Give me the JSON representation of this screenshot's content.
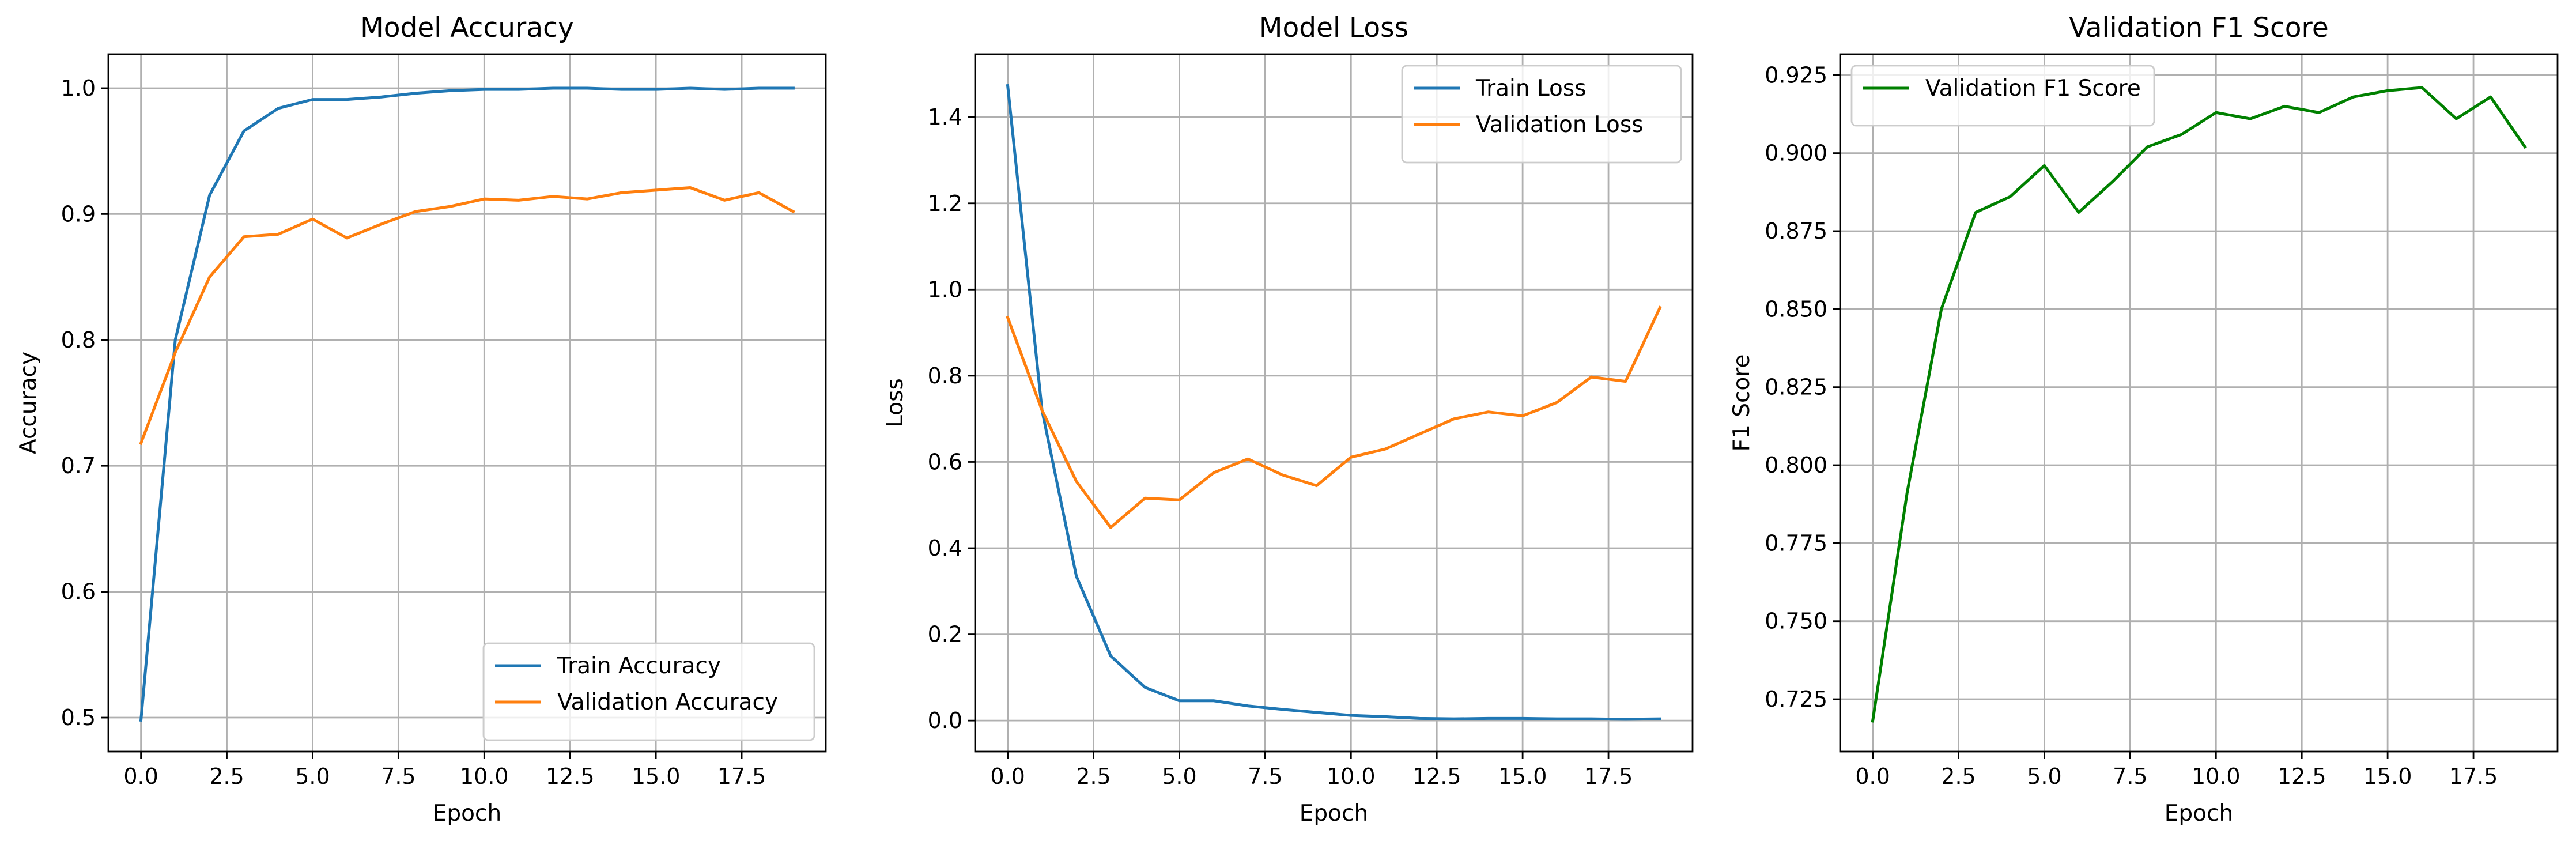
{
  "chart_data": [
    {
      "type": "line",
      "title": "Model Accuracy",
      "xlabel": "Epoch",
      "ylabel": "Accuracy",
      "x": [
        0,
        1,
        2,
        3,
        4,
        5,
        6,
        7,
        8,
        9,
        10,
        11,
        12,
        13,
        14,
        15,
        16,
        17,
        18,
        19
      ],
      "xlim": [
        -0.95,
        19.95
      ],
      "ylim": [
        0.473,
        1.027
      ],
      "xticks": [
        0.0,
        2.5,
        5.0,
        7.5,
        10.0,
        12.5,
        15.0,
        17.5
      ],
      "xtick_labels": [
        "0.0",
        "2.5",
        "5.0",
        "7.5",
        "10.0",
        "12.5",
        "15.0",
        "17.5"
      ],
      "yticks": [
        0.5,
        0.6,
        0.7,
        0.8,
        0.9,
        1.0
      ],
      "ytick_labels": [
        "0.5",
        "0.6",
        "0.7",
        "0.8",
        "0.9",
        "1.0"
      ],
      "grid": true,
      "legend_position": "lower-right",
      "series": [
        {
          "name": "Train Accuracy",
          "color": "#1f77b4",
          "values": [
            0.498,
            0.8,
            0.915,
            0.966,
            0.984,
            0.991,
            0.991,
            0.993,
            0.996,
            0.998,
            0.999,
            0.999,
            1.0,
            1.0,
            0.999,
            0.999,
            1.0,
            0.999,
            1.0,
            1.0
          ]
        },
        {
          "name": "Validation Accuracy",
          "color": "#ff7f0e",
          "values": [
            0.718,
            0.79,
            0.85,
            0.882,
            0.884,
            0.896,
            0.881,
            0.892,
            0.902,
            0.906,
            0.912,
            0.911,
            0.914,
            0.912,
            0.917,
            0.919,
            0.921,
            0.911,
            0.917,
            0.902
          ]
        }
      ]
    },
    {
      "type": "line",
      "title": "Model Loss",
      "xlabel": "Epoch",
      "ylabel": "Loss",
      "x": [
        0,
        1,
        2,
        3,
        4,
        5,
        6,
        7,
        8,
        9,
        10,
        11,
        12,
        13,
        14,
        15,
        16,
        17,
        18,
        19
      ],
      "xlim": [
        -0.95,
        19.95
      ],
      "ylim": [
        -0.072,
        1.546
      ],
      "xticks": [
        0.0,
        2.5,
        5.0,
        7.5,
        10.0,
        12.5,
        15.0,
        17.5
      ],
      "xtick_labels": [
        "0.0",
        "2.5",
        "5.0",
        "7.5",
        "10.0",
        "12.5",
        "15.0",
        "17.5"
      ],
      "yticks": [
        0.0,
        0.2,
        0.4,
        0.6,
        0.8,
        1.0,
        1.2,
        1.4
      ],
      "ytick_labels": [
        "0.0",
        "0.2",
        "0.4",
        "0.6",
        "0.8",
        "1.0",
        "1.2",
        "1.4"
      ],
      "grid": true,
      "legend_position": "upper-right",
      "series": [
        {
          "name": "Train Loss",
          "color": "#1f77b4",
          "values": [
            1.473,
            0.72,
            0.335,
            0.15,
            0.077,
            0.046,
            0.046,
            0.034,
            0.026,
            0.019,
            0.012,
            0.009,
            0.005,
            0.004,
            0.005,
            0.005,
            0.004,
            0.004,
            0.003,
            0.004
          ]
        },
        {
          "name": "Validation Loss",
          "color": "#ff7f0e",
          "values": [
            0.935,
            0.72,
            0.555,
            0.448,
            0.516,
            0.512,
            0.575,
            0.607,
            0.57,
            0.545,
            0.611,
            0.63,
            0.665,
            0.7,
            0.716,
            0.707,
            0.738,
            0.797,
            0.787,
            0.958
          ]
        }
      ]
    },
    {
      "type": "line",
      "title": "Validation F1 Score",
      "xlabel": "Epoch",
      "ylabel": "F1 Score",
      "x": [
        0,
        1,
        2,
        3,
        4,
        5,
        6,
        7,
        8,
        9,
        10,
        11,
        12,
        13,
        14,
        15,
        16,
        17,
        18,
        19
      ],
      "xlim": [
        -0.95,
        19.95
      ],
      "ylim": [
        0.7082,
        0.9317
      ],
      "xticks": [
        0.0,
        2.5,
        5.0,
        7.5,
        10.0,
        12.5,
        15.0,
        17.5
      ],
      "xtick_labels": [
        "0.0",
        "2.5",
        "5.0",
        "7.5",
        "10.0",
        "12.5",
        "15.0",
        "17.5"
      ],
      "yticks": [
        0.725,
        0.75,
        0.775,
        0.8,
        0.825,
        0.85,
        0.875,
        0.9,
        0.925
      ],
      "ytick_labels": [
        "0.725",
        "0.750",
        "0.775",
        "0.800",
        "0.825",
        "0.850",
        "0.875",
        "0.900",
        "0.925"
      ],
      "grid": true,
      "legend_position": "upper-left",
      "series": [
        {
          "name": "Validation F1 Score",
          "color": "#008000",
          "values": [
            0.718,
            0.791,
            0.85,
            0.881,
            0.886,
            0.896,
            0.881,
            0.891,
            0.902,
            0.906,
            0.913,
            0.911,
            0.915,
            0.913,
            0.918,
            0.92,
            0.921,
            0.911,
            0.918,
            0.902
          ]
        }
      ]
    }
  ]
}
